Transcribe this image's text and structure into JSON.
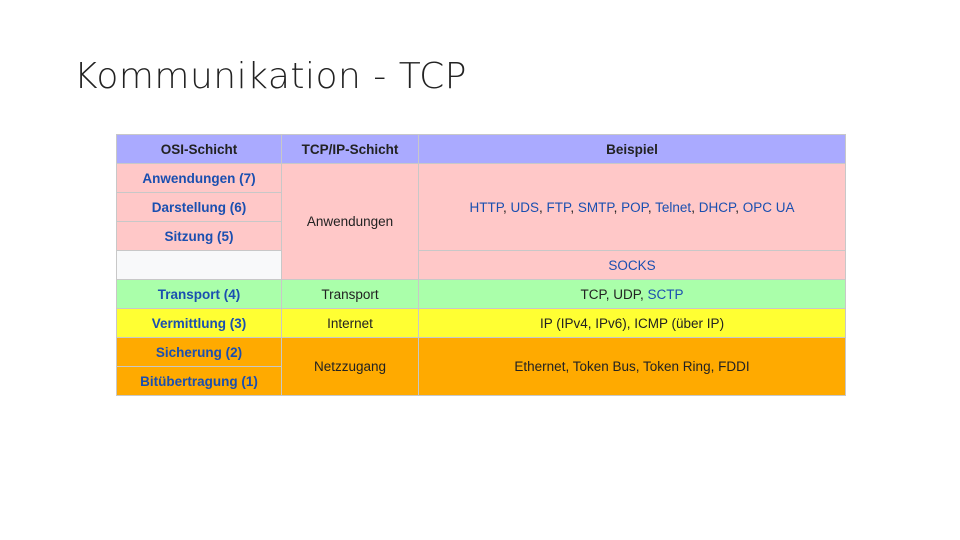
{
  "slide": {
    "title": "Kommunikation - TCP"
  },
  "table": {
    "headers": {
      "osi": "OSI-Schicht",
      "tcpip": "TCP/IP-Schicht",
      "example": "Beispiel"
    },
    "osi_layers": {
      "l7": "Anwendungen (7)",
      "l6": "Darstellung (6)",
      "l5": "Sitzung (5)",
      "l4": "Transport (4)",
      "l3": "Vermittlung (3)",
      "l2": "Sicherung (2)",
      "l1": "Bitübertragung (1)"
    },
    "tcpip_layers": {
      "application": "Anwendungen",
      "transport": "Transport",
      "internet": "Internet",
      "link": "Netzzugang"
    },
    "examples": {
      "application": {
        "http": "HTTP",
        "sep1": ", ",
        "uds": "UDS",
        "sep2": ", ",
        "ftp": "FTP",
        "sep3": ", ",
        "smtp": "SMTP",
        "sep4": ", ",
        "pop": "POP",
        "sep5": ", ",
        "telnet": "Telnet",
        "sep6": ", ",
        "dhcp": "DHCP",
        "sep7": ", ",
        "opcua": "OPC UA"
      },
      "socks": "SOCKS",
      "transport": {
        "tcp": "TCP",
        "sep1": ", ",
        "udp": "UDP",
        "sep2": ", ",
        "sctp": "SCTP"
      },
      "internet": {
        "ip": "IP",
        "t1": " (",
        "ipv4": "IPv4",
        "t2": ", ",
        "ipv6": "IPv6",
        "t3": "), ",
        "icmp": "ICMP",
        "t4": " (über ",
        "ip2": "IP",
        "t5": ")"
      },
      "link": {
        "ethernet": "Ethernet",
        "sep1": ", ",
        "tokenbus": "Token Bus",
        "sep2": ", ",
        "tokenring": "Token Ring",
        "sep3": ", ",
        "fddi": "FDDI"
      }
    }
  },
  "colors": {
    "header": "#aaaaff",
    "application": "#ffc8c8",
    "empty": "#f8f9fa",
    "transport": "#aaffaa",
    "internet": "#ffff33",
    "link_layer": "#ffaa00",
    "link_text": "#1a4fb0"
  }
}
